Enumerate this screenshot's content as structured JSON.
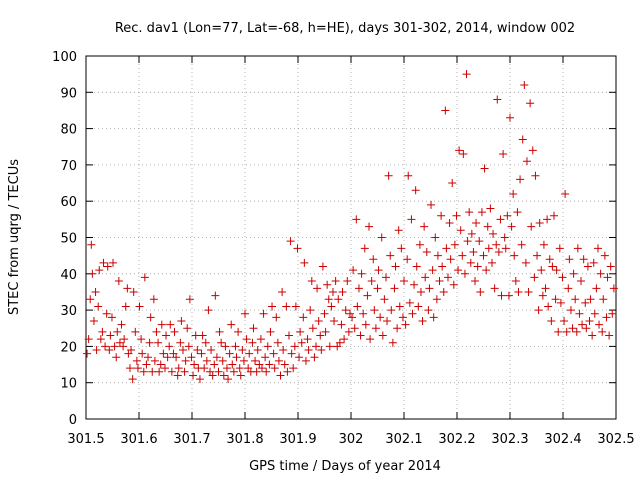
{
  "chart_data": {
    "type": "scatter",
    "title": "Rec. dav1 (Lon=77, Lat=-68, h=HE), days 301-302, 2014, window 002",
    "xlabel": "GPS time / Days of year 2014",
    "ylabel": "STEC from uqrg / TECUs",
    "xlim": [
      301.5,
      302.5
    ],
    "ylim": [
      0,
      100
    ],
    "xticks": [
      "301.5",
      "301.6",
      "301.7",
      "301.8",
      "301.9",
      "302",
      "302.1",
      "302.2",
      "302.3",
      "302.4",
      "302.5"
    ],
    "yticks": [
      "0",
      "10",
      "20",
      "30",
      "40",
      "50",
      "60",
      "70",
      "80",
      "90",
      "100"
    ],
    "grid": true,
    "marker": "+",
    "color": "#cc0000",
    "points": [
      [
        301.502,
        18
      ],
      [
        301.505,
        22
      ],
      [
        301.508,
        33
      ],
      [
        301.51,
        48
      ],
      [
        301.512,
        40
      ],
      [
        301.515,
        27
      ],
      [
        301.518,
        35
      ],
      [
        301.52,
        19
      ],
      [
        301.523,
        31
      ],
      [
        301.525,
        41
      ],
      [
        301.528,
        22
      ],
      [
        301.531,
        24
      ],
      [
        301.533,
        43
      ],
      [
        301.536,
        20
      ],
      [
        301.539,
        29
      ],
      [
        301.541,
        42
      ],
      [
        301.544,
        19
      ],
      [
        301.546,
        23
      ],
      [
        301.549,
        28
      ],
      [
        301.551,
        43
      ],
      [
        301.554,
        20
      ],
      [
        301.557,
        17
      ],
      [
        301.559,
        24
      ],
      [
        301.562,
        38
      ],
      [
        301.564,
        21
      ],
      [
        301.567,
        26
      ],
      [
        301.57,
        20
      ],
      [
        301.572,
        22
      ],
      [
        301.575,
        31
      ],
      [
        301.578,
        36
      ],
      [
        301.58,
        18
      ],
      [
        301.583,
        14
      ],
      [
        301.585,
        19
      ],
      [
        301.588,
        11
      ],
      [
        301.59,
        35
      ],
      [
        301.593,
        24
      ],
      [
        301.596,
        16
      ],
      [
        301.598,
        14
      ],
      [
        301.601,
        31
      ],
      [
        301.604,
        22
      ],
      [
        301.606,
        18
      ],
      [
        301.609,
        13
      ],
      [
        301.611,
        39
      ],
      [
        301.614,
        15
      ],
      [
        301.617,
        17
      ],
      [
        301.62,
        21
      ],
      [
        301.622,
        28
      ],
      [
        301.625,
        13
      ],
      [
        301.628,
        33
      ],
      [
        301.63,
        16
      ],
      [
        301.633,
        24
      ],
      [
        301.636,
        21
      ],
      [
        301.638,
        13
      ],
      [
        301.641,
        15
      ],
      [
        301.643,
        26
      ],
      [
        301.646,
        18
      ],
      [
        301.649,
        14
      ],
      [
        301.651,
        23
      ],
      [
        301.654,
        17
      ],
      [
        301.657,
        20
      ],
      [
        301.659,
        26
      ],
      [
        301.662,
        13
      ],
      [
        301.665,
        18
      ],
      [
        301.667,
        24
      ],
      [
        301.67,
        17
      ],
      [
        301.673,
        12
      ],
      [
        301.675,
        14
      ],
      [
        301.678,
        21
      ],
      [
        301.68,
        27
      ],
      [
        301.683,
        19
      ],
      [
        301.686,
        13
      ],
      [
        301.688,
        16
      ],
      [
        301.691,
        25
      ],
      [
        301.694,
        20
      ],
      [
        301.696,
        33
      ],
      [
        301.699,
        17
      ],
      [
        301.702,
        12
      ],
      [
        301.704,
        15
      ],
      [
        301.707,
        23
      ],
      [
        301.71,
        19
      ],
      [
        301.712,
        14
      ],
      [
        301.715,
        11
      ],
      [
        301.718,
        18
      ],
      [
        301.72,
        23
      ],
      [
        301.723,
        14
      ],
      [
        301.726,
        21
      ],
      [
        301.728,
        16
      ],
      [
        301.731,
        30
      ],
      [
        301.734,
        13
      ],
      [
        301.736,
        19
      ],
      [
        301.739,
        12
      ],
      [
        301.742,
        15
      ],
      [
        301.744,
        34
      ],
      [
        301.747,
        17
      ],
      [
        301.75,
        13
      ],
      [
        301.752,
        24
      ],
      [
        301.755,
        21
      ],
      [
        301.758,
        16
      ],
      [
        301.76,
        12
      ],
      [
        301.763,
        20
      ],
      [
        301.766,
        14
      ],
      [
        301.768,
        11
      ],
      [
        301.771,
        18
      ],
      [
        301.774,
        26
      ],
      [
        301.776,
        15
      ],
      [
        301.779,
        13
      ],
      [
        301.782,
        20
      ],
      [
        301.784,
        17
      ],
      [
        301.787,
        24
      ],
      [
        301.79,
        14
      ],
      [
        301.792,
        12
      ],
      [
        301.795,
        19
      ],
      [
        301.798,
        16
      ],
      [
        301.8,
        29
      ],
      [
        301.803,
        22
      ],
      [
        301.806,
        14
      ],
      [
        301.808,
        18
      ],
      [
        301.811,
        13
      ],
      [
        301.814,
        21
      ],
      [
        301.816,
        25
      ],
      [
        301.819,
        16
      ],
      [
        301.822,
        13
      ],
      [
        301.824,
        19
      ],
      [
        301.827,
        15
      ],
      [
        301.83,
        22
      ],
      [
        301.832,
        14
      ],
      [
        301.835,
        29
      ],
      [
        301.838,
        17
      ],
      [
        301.84,
        13
      ],
      [
        301.843,
        20
      ],
      [
        301.846,
        15
      ],
      [
        301.848,
        24
      ],
      [
        301.851,
        31
      ],
      [
        301.854,
        18
      ],
      [
        301.856,
        14
      ],
      [
        301.859,
        28
      ],
      [
        301.862,
        21
      ],
      [
        301.864,
        16
      ],
      [
        301.867,
        12
      ],
      [
        301.87,
        35
      ],
      [
        301.872,
        19
      ],
      [
        301.875,
        15
      ],
      [
        301.878,
        31
      ],
      [
        301.88,
        13
      ],
      [
        301.883,
        23
      ],
      [
        301.886,
        49
      ],
      [
        301.888,
        18
      ],
      [
        301.891,
        14
      ],
      [
        301.894,
        20
      ],
      [
        301.896,
        31
      ],
      [
        301.899,
        47
      ],
      [
        301.902,
        17
      ],
      [
        301.904,
        24
      ],
      [
        301.907,
        21
      ],
      [
        301.91,
        28
      ],
      [
        301.912,
        43
      ],
      [
        301.915,
        16
      ],
      [
        301.918,
        22
      ],
      [
        301.92,
        19
      ],
      [
        301.923,
        30
      ],
      [
        301.926,
        38
      ],
      [
        301.928,
        25
      ],
      [
        301.931,
        17
      ],
      [
        301.934,
        20
      ],
      [
        301.936,
        36
      ],
      [
        301.939,
        27
      ],
      [
        301.942,
        23
      ],
      [
        301.944,
        19
      ],
      [
        301.947,
        42
      ],
      [
        301.95,
        29
      ],
      [
        301.952,
        24
      ],
      [
        301.955,
        37
      ],
      [
        301.958,
        33
      ],
      [
        301.96,
        20
      ],
      [
        301.963,
        31
      ],
      [
        301.966,
        35
      ],
      [
        301.968,
        27
      ],
      [
        301.971,
        38
      ],
      [
        301.974,
        20
      ],
      [
        301.976,
        33
      ],
      [
        301.979,
        21
      ],
      [
        301.982,
        26
      ],
      [
        301.984,
        35
      ],
      [
        301.987,
        22
      ],
      [
        301.99,
        30
      ],
      [
        301.993,
        38
      ],
      [
        301.996,
        24
      ],
      [
        301.998,
        29
      ],
      [
        302.002,
        28
      ],
      [
        302.004,
        41
      ],
      [
        302.007,
        25
      ],
      [
        302.01,
        55
      ],
      [
        302.012,
        31
      ],
      [
        302.015,
        36
      ],
      [
        302.018,
        23
      ],
      [
        302.02,
        40
      ],
      [
        302.023,
        29
      ],
      [
        302.026,
        47
      ],
      [
        302.028,
        26
      ],
      [
        302.031,
        34
      ],
      [
        302.034,
        53
      ],
      [
        302.036,
        22
      ],
      [
        302.039,
        38
      ],
      [
        302.042,
        44
      ],
      [
        302.044,
        30
      ],
      [
        302.047,
        25
      ],
      [
        302.05,
        36
      ],
      [
        302.052,
        41
      ],
      [
        302.055,
        28
      ],
      [
        302.058,
        50
      ],
      [
        302.06,
        23
      ],
      [
        302.063,
        33
      ],
      [
        302.066,
        39
      ],
      [
        302.068,
        27
      ],
      [
        302.071,
        67
      ],
      [
        302.074,
        45
      ],
      [
        302.076,
        30
      ],
      [
        302.079,
        21
      ],
      [
        302.082,
        36
      ],
      [
        302.084,
        42
      ],
      [
        302.087,
        25
      ],
      [
        302.09,
        52
      ],
      [
        302.092,
        31
      ],
      [
        302.095,
        47
      ],
      [
        302.098,
        28
      ],
      [
        302.1,
        38
      ],
      [
        302.103,
        26
      ],
      [
        302.106,
        44
      ],
      [
        302.108,
        67
      ],
      [
        302.111,
        32
      ],
      [
        302.114,
        55
      ],
      [
        302.116,
        29
      ],
      [
        302.119,
        37
      ],
      [
        302.122,
        63
      ],
      [
        302.124,
        42
      ],
      [
        302.127,
        31
      ],
      [
        302.13,
        48
      ],
      [
        302.132,
        35
      ],
      [
        302.135,
        27
      ],
      [
        302.138,
        53
      ],
      [
        302.14,
        39
      ],
      [
        302.143,
        46
      ],
      [
        302.146,
        30
      ],
      [
        302.148,
        36
      ],
      [
        302.151,
        59
      ],
      [
        302.154,
        41
      ],
      [
        302.156,
        28
      ],
      [
        302.159,
        50
      ],
      [
        302.162,
        33
      ],
      [
        302.164,
        45
      ],
      [
        302.167,
        38
      ],
      [
        302.17,
        56
      ],
      [
        302.172,
        42
      ],
      [
        302.175,
        35
      ],
      [
        302.178,
        85
      ],
      [
        302.18,
        47
      ],
      [
        302.183,
        39
      ],
      [
        302.186,
        54
      ],
      [
        302.188,
        44
      ],
      [
        302.191,
        65
      ],
      [
        302.194,
        37
      ],
      [
        302.196,
        48
      ],
      [
        302.199,
        56
      ],
      [
        302.202,
        41
      ],
      [
        302.204,
        74
      ],
      [
        302.207,
        52
      ],
      [
        302.21,
        45
      ],
      [
        302.212,
        73
      ],
      [
        302.215,
        40
      ],
      [
        302.218,
        95
      ],
      [
        302.22,
        49
      ],
      [
        302.223,
        57
      ],
      [
        302.226,
        43
      ],
      [
        302.228,
        51
      ],
      [
        302.231,
        46
      ],
      [
        302.234,
        38
      ],
      [
        302.236,
        54
      ],
      [
        302.239,
        42
      ],
      [
        302.242,
        49
      ],
      [
        302.244,
        35
      ],
      [
        302.247,
        57
      ],
      [
        302.25,
        45
      ],
      [
        302.252,
        69
      ],
      [
        302.255,
        41
      ],
      [
        302.258,
        53
      ],
      [
        302.26,
        47
      ],
      [
        302.263,
        58
      ],
      [
        302.266,
        43
      ],
      [
        302.268,
        51
      ],
      [
        302.271,
        36
      ],
      [
        302.274,
        48
      ],
      [
        302.276,
        88
      ],
      [
        302.279,
        46
      ],
      [
        302.282,
        55
      ],
      [
        302.284,
        34
      ],
      [
        302.287,
        73
      ],
      [
        302.29,
        50
      ],
      [
        302.292,
        47
      ],
      [
        302.295,
        56
      ],
      [
        302.298,
        34
      ],
      [
        302.3,
        83
      ],
      [
        302.303,
        53
      ],
      [
        302.306,
        62
      ],
      [
        302.308,
        45
      ],
      [
        302.311,
        38
      ],
      [
        302.314,
        57
      ],
      [
        302.316,
        35
      ],
      [
        302.319,
        66
      ],
      [
        302.322,
        48
      ],
      [
        302.324,
        77
      ],
      [
        302.327,
        92
      ],
      [
        302.33,
        43
      ],
      [
        302.332,
        71
      ],
      [
        302.335,
        35
      ],
      [
        302.338,
        87
      ],
      [
        302.34,
        53
      ],
      [
        302.343,
        74
      ],
      [
        302.346,
        39
      ],
      [
        302.348,
        67
      ],
      [
        302.351,
        45
      ],
      [
        302.354,
        30
      ],
      [
        302.356,
        54
      ],
      [
        302.359,
        41
      ],
      [
        302.362,
        34
      ],
      [
        302.364,
        48
      ],
      [
        302.367,
        36
      ],
      [
        302.37,
        55
      ],
      [
        302.372,
        31
      ],
      [
        302.375,
        44
      ],
      [
        302.378,
        27
      ],
      [
        302.38,
        42
      ],
      [
        302.383,
        56
      ],
      [
        302.386,
        33
      ],
      [
        302.388,
        41
      ],
      [
        302.391,
        24
      ],
      [
        302.394,
        47
      ],
      [
        302.396,
        32
      ],
      [
        302.399,
        39
      ],
      [
        302.402,
        27
      ],
      [
        302.404,
        62
      ],
      [
        302.407,
        24
      ],
      [
        302.41,
        36
      ],
      [
        302.412,
        44
      ],
      [
        302.415,
        30
      ],
      [
        302.418,
        25
      ],
      [
        302.42,
        40
      ],
      [
        302.423,
        33
      ],
      [
        302.426,
        24
      ],
      [
        302.428,
        47
      ],
      [
        302.431,
        29
      ],
      [
        302.434,
        38
      ],
      [
        302.436,
        26
      ],
      [
        302.439,
        44
      ],
      [
        302.442,
        32
      ],
      [
        302.444,
        25
      ],
      [
        302.447,
        42
      ],
      [
        302.45,
        27
      ],
      [
        302.452,
        33
      ],
      [
        302.455,
        23
      ],
      [
        302.458,
        43
      ],
      [
        302.46,
        29
      ],
      [
        302.463,
        36
      ],
      [
        302.466,
        47
      ],
      [
        302.468,
        26
      ],
      [
        302.471,
        40
      ],
      [
        302.474,
        24
      ],
      [
        302.476,
        33
      ],
      [
        302.479,
        45
      ],
      [
        302.482,
        28
      ],
      [
        302.484,
        39
      ],
      [
        302.487,
        23
      ],
      [
        302.49,
        42
      ],
      [
        302.493,
        29
      ],
      [
        302.496,
        36
      ]
    ]
  }
}
